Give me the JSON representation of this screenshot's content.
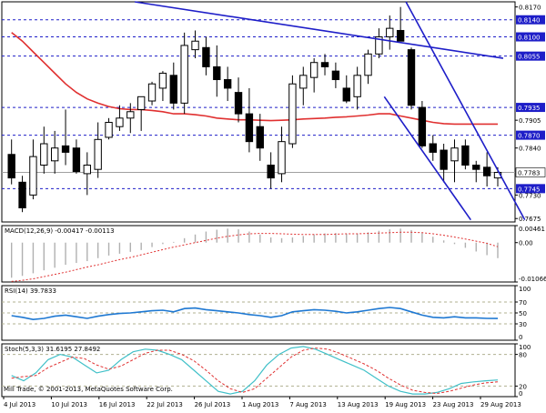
{
  "chart_data": [
    {
      "name": "price",
      "type": "candlestick",
      "x_labels": [
        "4 Jul 2013",
        "10 Jul 2013",
        "16 Jul 2013",
        "22 Jul 2013",
        "26 Jul 2013",
        "1 Aug 2013",
        "7 Aug 2013",
        "13 Aug 2013",
        "19 Aug 2013",
        "23 Aug 2013",
        "29 Aug 2013"
      ],
      "ylim": [
        0.7667,
        0.8182
      ],
      "y_ticks": [
        0.817,
        0.7905,
        0.784,
        0.773,
        0.7675
      ],
      "level_labels": [
        0.814,
        0.81,
        0.8055,
        0.7935,
        0.787,
        0.7745
      ],
      "last_price": 0.7783,
      "candles": [
        {
          "o": 0.7825,
          "h": 0.786,
          "l": 0.7755,
          "c": 0.777
        },
        {
          "o": 0.776,
          "h": 0.7775,
          "l": 0.769,
          "c": 0.77
        },
        {
          "o": 0.773,
          "h": 0.786,
          "l": 0.772,
          "c": 0.782
        },
        {
          "o": 0.78,
          "h": 0.789,
          "l": 0.778,
          "c": 0.785
        },
        {
          "o": 0.781,
          "h": 0.788,
          "l": 0.778,
          "c": 0.784
        },
        {
          "o": 0.7845,
          "h": 0.793,
          "l": 0.78,
          "c": 0.783
        },
        {
          "o": 0.784,
          "h": 0.786,
          "l": 0.778,
          "c": 0.7785
        },
        {
          "o": 0.778,
          "h": 0.783,
          "l": 0.773,
          "c": 0.78
        },
        {
          "o": 0.779,
          "h": 0.79,
          "l": 0.777,
          "c": 0.786
        },
        {
          "o": 0.7865,
          "h": 0.791,
          "l": 0.786,
          "c": 0.79
        },
        {
          "o": 0.789,
          "h": 0.794,
          "l": 0.788,
          "c": 0.791
        },
        {
          "o": 0.791,
          "h": 0.7945,
          "l": 0.7875,
          "c": 0.7925
        },
        {
          "o": 0.793,
          "h": 0.796,
          "l": 0.788,
          "c": 0.796
        },
        {
          "o": 0.795,
          "h": 0.7995,
          "l": 0.794,
          "c": 0.799
        },
        {
          "o": 0.798,
          "h": 0.802,
          "l": 0.795,
          "c": 0.8015
        },
        {
          "o": 0.801,
          "h": 0.804,
          "l": 0.793,
          "c": 0.7945
        },
        {
          "o": 0.7945,
          "h": 0.811,
          "l": 0.792,
          "c": 0.808
        },
        {
          "o": 0.807,
          "h": 0.8115,
          "l": 0.805,
          "c": 0.809
        },
        {
          "o": 0.8075,
          "h": 0.81,
          "l": 0.801,
          "c": 0.803
        },
        {
          "o": 0.803,
          "h": 0.808,
          "l": 0.796,
          "c": 0.8
        },
        {
          "o": 0.8,
          "h": 0.803,
          "l": 0.795,
          "c": 0.798
        },
        {
          "o": 0.797,
          "h": 0.8005,
          "l": 0.79,
          "c": 0.792
        },
        {
          "o": 0.792,
          "h": 0.798,
          "l": 0.783,
          "c": 0.7855
        },
        {
          "o": 0.789,
          "h": 0.792,
          "l": 0.781,
          "c": 0.784
        },
        {
          "o": 0.78,
          "h": 0.783,
          "l": 0.7745,
          "c": 0.777
        },
        {
          "o": 0.778,
          "h": 0.789,
          "l": 0.776,
          "c": 0.7855
        },
        {
          "o": 0.785,
          "h": 0.801,
          "l": 0.784,
          "c": 0.799
        },
        {
          "o": 0.798,
          "h": 0.803,
          "l": 0.794,
          "c": 0.801
        },
        {
          "o": 0.8005,
          "h": 0.805,
          "l": 0.797,
          "c": 0.804
        },
        {
          "o": 0.804,
          "h": 0.806,
          "l": 0.801,
          "c": 0.803
        },
        {
          "o": 0.802,
          "h": 0.804,
          "l": 0.798,
          "c": 0.8
        },
        {
          "o": 0.798,
          "h": 0.801,
          "l": 0.7945,
          "c": 0.795
        },
        {
          "o": 0.796,
          "h": 0.803,
          "l": 0.793,
          "c": 0.801
        },
        {
          "o": 0.801,
          "h": 0.807,
          "l": 0.799,
          "c": 0.806
        },
        {
          "o": 0.806,
          "h": 0.812,
          "l": 0.805,
          "c": 0.81
        },
        {
          "o": 0.81,
          "h": 0.815,
          "l": 0.807,
          "c": 0.812
        },
        {
          "o": 0.8115,
          "h": 0.817,
          "l": 0.809,
          "c": 0.809
        },
        {
          "o": 0.807,
          "h": 0.8075,
          "l": 0.793,
          "c": 0.794
        },
        {
          "o": 0.7935,
          "h": 0.795,
          "l": 0.784,
          "c": 0.7845
        },
        {
          "o": 0.785,
          "h": 0.787,
          "l": 0.781,
          "c": 0.783
        },
        {
          "o": 0.7835,
          "h": 0.785,
          "l": 0.776,
          "c": 0.779
        },
        {
          "o": 0.781,
          "h": 0.786,
          "l": 0.776,
          "c": 0.784
        },
        {
          "o": 0.7845,
          "h": 0.786,
          "l": 0.779,
          "c": 0.78
        },
        {
          "o": 0.78,
          "h": 0.781,
          "l": 0.776,
          "c": 0.779
        },
        {
          "o": 0.7795,
          "h": 0.783,
          "l": 0.775,
          "c": 0.7775
        },
        {
          "o": 0.777,
          "h": 0.7795,
          "l": 0.775,
          "c": 0.7783
        }
      ],
      "moving_average": {
        "color": "#e03030",
        "values": [
          0.811,
          0.809,
          0.8065,
          0.804,
          0.8015,
          0.799,
          0.797,
          0.7955,
          0.7945,
          0.7937,
          0.7932,
          0.793,
          0.793,
          0.7928,
          0.7925,
          0.792,
          0.792,
          0.7918,
          0.7915,
          0.791,
          0.7908,
          0.7906,
          0.7906,
          0.7905,
          0.7904,
          0.7905,
          0.7906,
          0.7908,
          0.7909,
          0.791,
          0.7912,
          0.7913,
          0.7915,
          0.7917,
          0.792,
          0.792,
          0.7915,
          0.791,
          0.7905,
          0.79,
          0.7897,
          0.7896,
          0.7896,
          0.7896,
          0.7896,
          0.7896
        ]
      },
      "trendlines_color": "#1e1ec8",
      "colors": {
        "up": "#ffffff",
        "down": "#000000",
        "level": "#1e1ec8",
        "label_bg": "#1e1ec8",
        "label_text": "#ffffff",
        "last_bg": "#ffffff"
      }
    },
    {
      "name": "macd",
      "type": "histogram+line",
      "label": "MACD(12,26,9) -0.00417 -0.00113",
      "y_ticks": [
        0.00461,
        0.0,
        -0.01066
      ],
      "ylim": [
        -0.01066,
        0.00461
      ],
      "histogram": [
        -0.0095,
        -0.009,
        -0.0083,
        -0.0075,
        -0.0068,
        -0.006,
        -0.0055,
        -0.005,
        -0.0042,
        -0.0035,
        -0.003,
        -0.0025,
        -0.002,
        -0.0012,
        -0.0004,
        0.0002,
        0.0012,
        0.0022,
        0.003,
        0.0035,
        0.0038,
        0.0036,
        0.003,
        0.0022,
        0.0014,
        0.0012,
        0.0014,
        0.0018,
        0.0022,
        0.0025,
        0.0026,
        0.0024,
        0.0025,
        0.0028,
        0.0032,
        0.0036,
        0.0038,
        0.0034,
        0.0026,
        0.0016,
        0.0006,
        -0.0004,
        -0.0014,
        -0.0024,
        -0.0034,
        -0.0042
      ],
      "signal": [
        -0.0105,
        -0.0102,
        -0.0098,
        -0.0092,
        -0.0086,
        -0.008,
        -0.0073,
        -0.0066,
        -0.006,
        -0.0053,
        -0.0046,
        -0.004,
        -0.0033,
        -0.0026,
        -0.0019,
        -0.0012,
        -0.0006,
        0.0,
        0.0006,
        0.0012,
        0.0017,
        0.0021,
        0.0024,
        0.0025,
        0.0025,
        0.0024,
        0.0023,
        0.0022,
        0.0022,
        0.0022,
        0.0023,
        0.0024,
        0.0024,
        0.0025,
        0.0026,
        0.0027,
        0.0028,
        0.0028,
        0.0027,
        0.0024,
        0.002,
        0.0015,
        0.001,
        0.0004,
        -0.0002,
        -0.0011
      ],
      "colors": {
        "histogram": "#b0b0b0",
        "signal": "#e03030"
      }
    },
    {
      "name": "rsi",
      "type": "line",
      "label": "RSI(14) 39.7833",
      "y_ticks": [
        100,
        70,
        50,
        30,
        0
      ],
      "ylim": [
        0,
        100
      ],
      "values": [
        45,
        42,
        38,
        40,
        44,
        46,
        43,
        40,
        44,
        47,
        49,
        50,
        52,
        54,
        55,
        52,
        58,
        59,
        56,
        54,
        52,
        50,
        47,
        45,
        42,
        45,
        52,
        54,
        56,
        55,
        53,
        50,
        52,
        55,
        58,
        60,
        58,
        52,
        46,
        42,
        41,
        43,
        41,
        41,
        40,
        39.78
      ],
      "colors": {
        "line": "#1e78d2",
        "levels": "#b0b090"
      }
    },
    {
      "name": "stoch",
      "type": "line",
      "label": "Stoch(5,3,3) 31.6195 27.8492",
      "y_ticks": [
        100,
        80,
        20,
        0
      ],
      "ylim": [
        0,
        100
      ],
      "main": [
        40,
        30,
        45,
        70,
        80,
        75,
        60,
        45,
        50,
        70,
        85,
        90,
        88,
        80,
        70,
        50,
        30,
        10,
        5,
        10,
        30,
        60,
        80,
        92,
        95,
        90,
        80,
        70,
        60,
        50,
        35,
        20,
        10,
        5,
        5,
        8,
        15,
        25,
        28,
        30,
        31.62
      ],
      "signal": [
        35,
        38,
        40,
        55,
        65,
        75,
        72,
        60,
        52,
        58,
        70,
        82,
        88,
        88,
        80,
        68,
        50,
        30,
        15,
        8,
        15,
        35,
        55,
        75,
        88,
        92,
        90,
        82,
        72,
        62,
        50,
        35,
        22,
        12,
        8,
        6,
        10,
        16,
        22,
        26,
        27.85
      ],
      "colors": {
        "main": "#40c0c8",
        "signal": "#e03030",
        "levels": "#b0b090"
      }
    }
  ],
  "footer": {
    "copyright": "Mill Trade, © 2001-2013, MetaQuotes Software Corp."
  }
}
